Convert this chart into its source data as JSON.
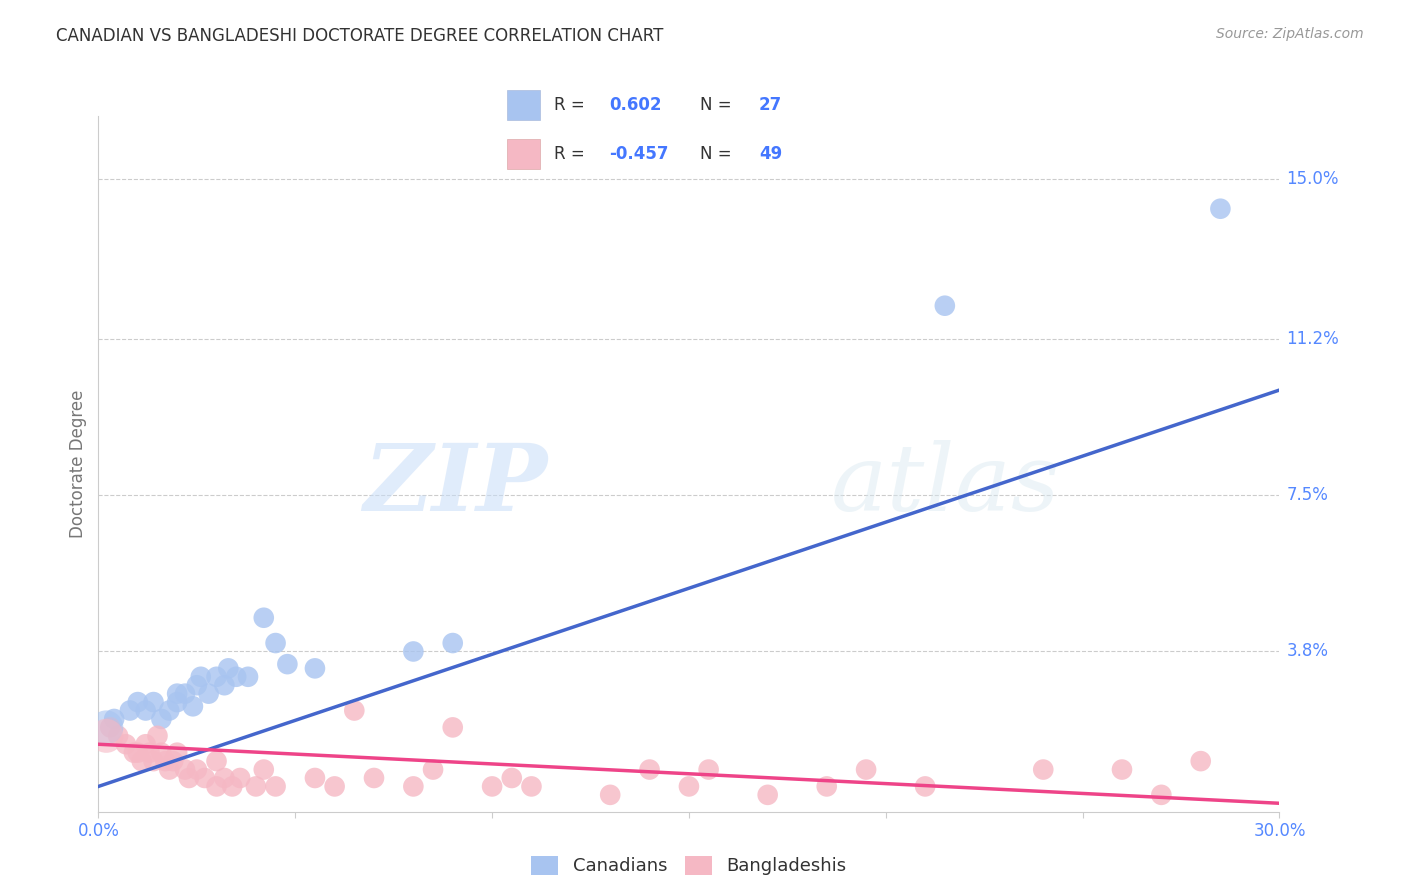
{
  "title": "CANADIAN VS BANGLADESHI DOCTORATE DEGREE CORRELATION CHART",
  "source": "Source: ZipAtlas.com",
  "ylabel": "Doctorate Degree",
  "xlim": [
    0.0,
    0.3
  ],
  "ylim": [
    0.0,
    0.165
  ],
  "xticks": [
    0.0,
    0.05,
    0.1,
    0.15,
    0.2,
    0.25,
    0.3
  ],
  "xticklabels": [
    "0.0%",
    "",
    "",
    "",
    "",
    "",
    "30.0%"
  ],
  "ytick_positions": [
    0.0,
    0.038,
    0.075,
    0.112,
    0.15
  ],
  "ytick_labels": [
    "",
    "3.8%",
    "7.5%",
    "11.2%",
    "15.0%"
  ],
  "watermark_zip": "ZIP",
  "watermark_atlas": "atlas",
  "blue_color": "#a8c4f0",
  "pink_color": "#f5b8c4",
  "blue_line_color": "#4466cc",
  "pink_line_color": "#ee4488",
  "blue_scatter": [
    [
      0.004,
      0.022
    ],
    [
      0.008,
      0.024
    ],
    [
      0.01,
      0.026
    ],
    [
      0.012,
      0.024
    ],
    [
      0.014,
      0.026
    ],
    [
      0.016,
      0.022
    ],
    [
      0.018,
      0.024
    ],
    [
      0.02,
      0.026
    ],
    [
      0.02,
      0.028
    ],
    [
      0.022,
      0.028
    ],
    [
      0.024,
      0.025
    ],
    [
      0.025,
      0.03
    ],
    [
      0.026,
      0.032
    ],
    [
      0.028,
      0.028
    ],
    [
      0.03,
      0.032
    ],
    [
      0.032,
      0.03
    ],
    [
      0.033,
      0.034
    ],
    [
      0.035,
      0.032
    ],
    [
      0.038,
      0.032
    ],
    [
      0.042,
      0.046
    ],
    [
      0.045,
      0.04
    ],
    [
      0.048,
      0.035
    ],
    [
      0.055,
      0.034
    ],
    [
      0.08,
      0.038
    ],
    [
      0.09,
      0.04
    ],
    [
      0.215,
      0.12
    ],
    [
      0.285,
      0.143
    ]
  ],
  "pink_scatter": [
    [
      0.003,
      0.02
    ],
    [
      0.005,
      0.018
    ],
    [
      0.007,
      0.016
    ],
    [
      0.009,
      0.014
    ],
    [
      0.01,
      0.014
    ],
    [
      0.011,
      0.012
    ],
    [
      0.012,
      0.016
    ],
    [
      0.013,
      0.014
    ],
    [
      0.014,
      0.012
    ],
    [
      0.015,
      0.018
    ],
    [
      0.016,
      0.014
    ],
    [
      0.017,
      0.012
    ],
    [
      0.018,
      0.01
    ],
    [
      0.019,
      0.012
    ],
    [
      0.02,
      0.014
    ],
    [
      0.022,
      0.01
    ],
    [
      0.023,
      0.008
    ],
    [
      0.025,
      0.01
    ],
    [
      0.027,
      0.008
    ],
    [
      0.03,
      0.012
    ],
    [
      0.03,
      0.006
    ],
    [
      0.032,
      0.008
    ],
    [
      0.034,
      0.006
    ],
    [
      0.036,
      0.008
    ],
    [
      0.04,
      0.006
    ],
    [
      0.042,
      0.01
    ],
    [
      0.045,
      0.006
    ],
    [
      0.055,
      0.008
    ],
    [
      0.06,
      0.006
    ],
    [
      0.065,
      0.024
    ],
    [
      0.07,
      0.008
    ],
    [
      0.08,
      0.006
    ],
    [
      0.085,
      0.01
    ],
    [
      0.09,
      0.02
    ],
    [
      0.1,
      0.006
    ],
    [
      0.105,
      0.008
    ],
    [
      0.11,
      0.006
    ],
    [
      0.13,
      0.004
    ],
    [
      0.14,
      0.01
    ],
    [
      0.15,
      0.006
    ],
    [
      0.155,
      0.01
    ],
    [
      0.17,
      0.004
    ],
    [
      0.185,
      0.006
    ],
    [
      0.195,
      0.01
    ],
    [
      0.21,
      0.006
    ],
    [
      0.24,
      0.01
    ],
    [
      0.26,
      0.01
    ],
    [
      0.27,
      0.004
    ],
    [
      0.28,
      0.012
    ]
  ],
  "blue_line_x": [
    0.0,
    0.3
  ],
  "blue_line_y": [
    0.006,
    0.1
  ],
  "pink_line_x": [
    0.0,
    0.3
  ],
  "pink_line_y": [
    0.016,
    0.002
  ],
  "background_color": "#ffffff",
  "grid_color": "#cccccc",
  "title_color": "#333333",
  "axis_label_color": "#777777",
  "ytick_color": "#5588ff",
  "xtick_color": "#5588ff",
  "legend_box_color": "#f8f8ff",
  "legend_border_color": "#dddddd"
}
